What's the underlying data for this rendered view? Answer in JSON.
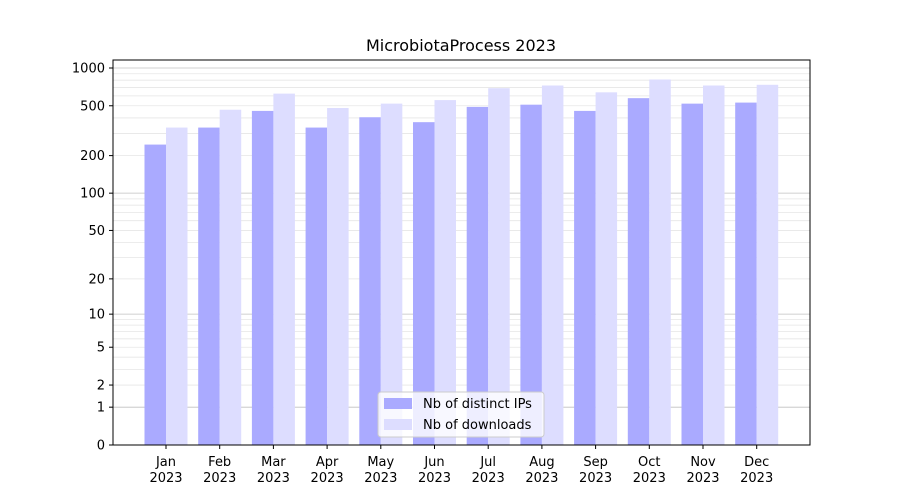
{
  "chart_data": {
    "type": "bar",
    "title": "MicrobiotaProcess 2023",
    "xlabel": "",
    "ylabel": "",
    "yscale": "symlog",
    "ylim": [
      0,
      1000
    ],
    "yticks": [
      "0",
      "1",
      "2",
      "5",
      "10",
      "20",
      "50",
      "100",
      "200",
      "500",
      "1000"
    ],
    "grid": true,
    "legend_position": "lower-center",
    "categories": [
      "Jan\n2023",
      "Feb\n2023",
      "Mar\n2023",
      "Apr\n2023",
      "May\n2023",
      "Jun\n2023",
      "Jul\n2023",
      "Aug\n2023",
      "Sep\n2023",
      "Oct\n2023",
      "Nov\n2023",
      "Dec\n2023"
    ],
    "series": [
      {
        "name": "Nb of distinct IPs",
        "color": "#aaaaff",
        "values": [
          245,
          335,
          455,
          335,
          405,
          370,
          490,
          510,
          455,
          575,
          520,
          530
        ]
      },
      {
        "name": "Nb of downloads",
        "color": "#ddddff",
        "values": [
          335,
          465,
          625,
          480,
          520,
          555,
          690,
          725,
          640,
          810,
          725,
          735
        ]
      }
    ]
  }
}
